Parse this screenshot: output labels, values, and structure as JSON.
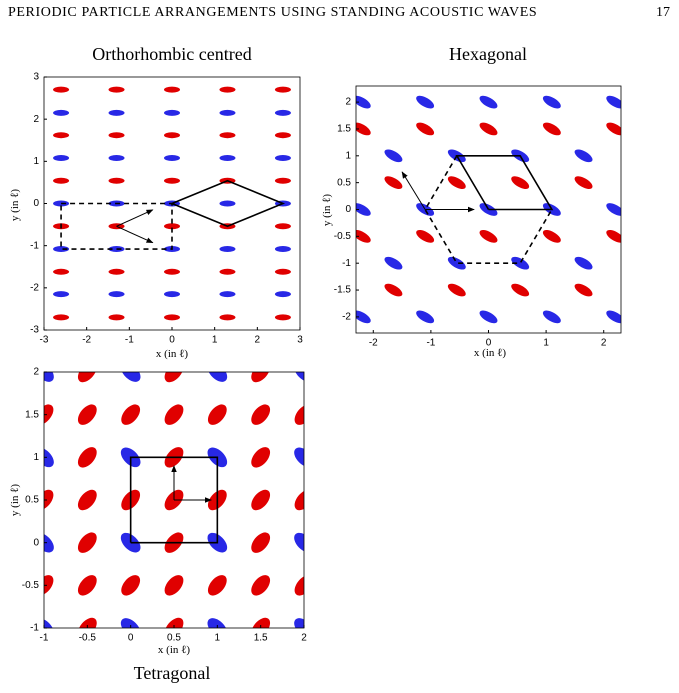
{
  "header": {
    "title": "PERIODIC PARTICLE ARRANGEMENTS USING STANDING ACOUSTIC WAVES",
    "page": "17"
  },
  "chart_data": [
    {
      "type": "scatter",
      "title": "Orthorhombic centred",
      "x_label": "x (in ℓ)",
      "y_label": "y (in ℓ)",
      "xlim": [
        -3,
        3
      ],
      "ylim": [
        -3,
        3
      ],
      "xticks": [
        -3,
        -2,
        -1,
        0,
        1,
        2,
        3
      ],
      "yticks": [
        -3,
        -2,
        -1,
        0,
        1,
        2,
        3
      ],
      "series": [
        {
          "color": "#e00000",
          "x": [
            -2.6,
            -1.3,
            0,
            1.3,
            2.6,
            -2.6,
            -1.3,
            0,
            1.3,
            2.6,
            -2.6,
            -1.3,
            0,
            1.3,
            2.6,
            -2.6,
            -1.3,
            0,
            1.3,
            2.6,
            -2.6,
            -1.3,
            0,
            1.3,
            2.6,
            -2.6,
            -1.3,
            0,
            1.3,
            2.6
          ],
          "y": [
            2.7,
            2.7,
            2.7,
            2.7,
            2.7,
            1.62,
            1.62,
            1.62,
            1.62,
            1.62,
            0.54,
            0.54,
            0.54,
            0.54,
            0.54,
            -0.54,
            -0.54,
            -0.54,
            -0.54,
            -0.54,
            -1.62,
            -1.62,
            -1.62,
            -1.62,
            -1.62,
            -2.7,
            -2.7,
            -2.7,
            -2.7,
            -2.7
          ]
        },
        {
          "color": "#2828e6",
          "x": [
            -2.6,
            -1.3,
            0,
            1.3,
            2.6,
            -2.6,
            -1.3,
            0,
            1.3,
            2.6,
            -2.6,
            -1.3,
            0,
            1.3,
            2.6,
            -2.6,
            -1.3,
            0,
            1.3,
            2.6,
            -2.6,
            -1.3,
            0,
            1.3,
            2.6
          ],
          "y": [
            2.15,
            2.15,
            2.15,
            2.15,
            2.15,
            1.08,
            1.08,
            1.08,
            1.08,
            1.08,
            0,
            0,
            0,
            0,
            0,
            -1.08,
            -1.08,
            -1.08,
            -1.08,
            -1.08,
            -2.15,
            -2.15,
            -2.15,
            -2.15,
            -2.15
          ]
        }
      ]
    },
    {
      "type": "scatter",
      "title": "Hexagonal",
      "x_label": "x (in ℓ)",
      "y_label": "y (in ℓ)",
      "xlim": [
        -2.3,
        2.3
      ],
      "ylim": [
        -2.3,
        2.3
      ],
      "xticks": [
        -2,
        -1,
        0,
        1,
        2
      ],
      "yticks": [
        -2,
        -1.5,
        -1,
        -0.5,
        0,
        0.5,
        1,
        1.5,
        2
      ],
      "series": [
        {
          "color": "#e00000",
          "x": [
            -1.65,
            -0.55,
            0.55,
            1.65,
            -2.2,
            -1.1,
            0,
            1.1,
            2.2,
            -2.2,
            -1.1,
            0,
            1.1,
            2.2,
            -1.65,
            -0.55,
            0.55,
            1.65
          ],
          "y": [
            0.5,
            0.5,
            0.5,
            0.5,
            1.5,
            1.5,
            1.5,
            1.5,
            1.5,
            -0.5,
            -0.5,
            -0.5,
            -0.5,
            -0.5,
            -1.5,
            -1.5,
            -1.5,
            -1.5
          ]
        },
        {
          "color": "#2828e6",
          "x": [
            -2.2,
            -1.1,
            0,
            1.1,
            2.2,
            -1.65,
            -0.55,
            0.55,
            1.65,
            -2.2,
            -1.1,
            0,
            1.1,
            2.2,
            -1.65,
            -0.55,
            0.55,
            1.65,
            -2.2,
            -1.1,
            0,
            1.1,
            2.2
          ],
          "y": [
            0,
            0,
            0,
            0,
            0,
            1,
            1,
            1,
            1,
            2,
            2,
            2,
            2,
            2,
            -1,
            -1,
            -1,
            -1,
            -2,
            -2,
            -2,
            -2,
            -2
          ]
        }
      ]
    },
    {
      "type": "scatter",
      "title": "Tetragonal",
      "x_label": "x (in ℓ)",
      "y_label": "y (in ℓ)",
      "xlim": [
        -1,
        2
      ],
      "ylim": [
        -1,
        2
      ],
      "xticks": [
        -1,
        -0.5,
        0,
        0.5,
        1,
        1.5,
        2
      ],
      "yticks": [
        -1,
        -0.5,
        0,
        0.5,
        1,
        1.5,
        2
      ],
      "series": [
        {
          "color": "#e00000",
          "x": [
            -0.5,
            0.5,
            1.5,
            -1,
            -0.5,
            0,
            0.5,
            1,
            1.5,
            2,
            -0.5,
            0.5,
            1.5,
            -1,
            -0.5,
            0,
            0.5,
            1,
            1.5,
            2,
            -0.5,
            0.5,
            1.5,
            -1,
            -0.5,
            0,
            0.5,
            1,
            1.5,
            2,
            -0.5,
            0.5,
            1.5
          ],
          "y": [
            -1,
            -1,
            -1,
            -0.5,
            -0.5,
            -0.5,
            -0.5,
            -0.5,
            -0.5,
            -0.5,
            0,
            0,
            0,
            0.5,
            0.5,
            0.5,
            0.5,
            0.5,
            0.5,
            0.5,
            1,
            1,
            1,
            1.5,
            1.5,
            1.5,
            1.5,
            1.5,
            1.5,
            1.5,
            2,
            2,
            2
          ]
        },
        {
          "color": "#2828e6",
          "x": [
            -1,
            0,
            1,
            2,
            -1,
            0,
            1,
            2,
            -1,
            0,
            1,
            2,
            -1,
            0,
            1,
            2
          ],
          "y": [
            -1,
            -1,
            -1,
            -1,
            0,
            0,
            0,
            0,
            1,
            1,
            1,
            1,
            2,
            2,
            2,
            2
          ]
        }
      ]
    }
  ]
}
